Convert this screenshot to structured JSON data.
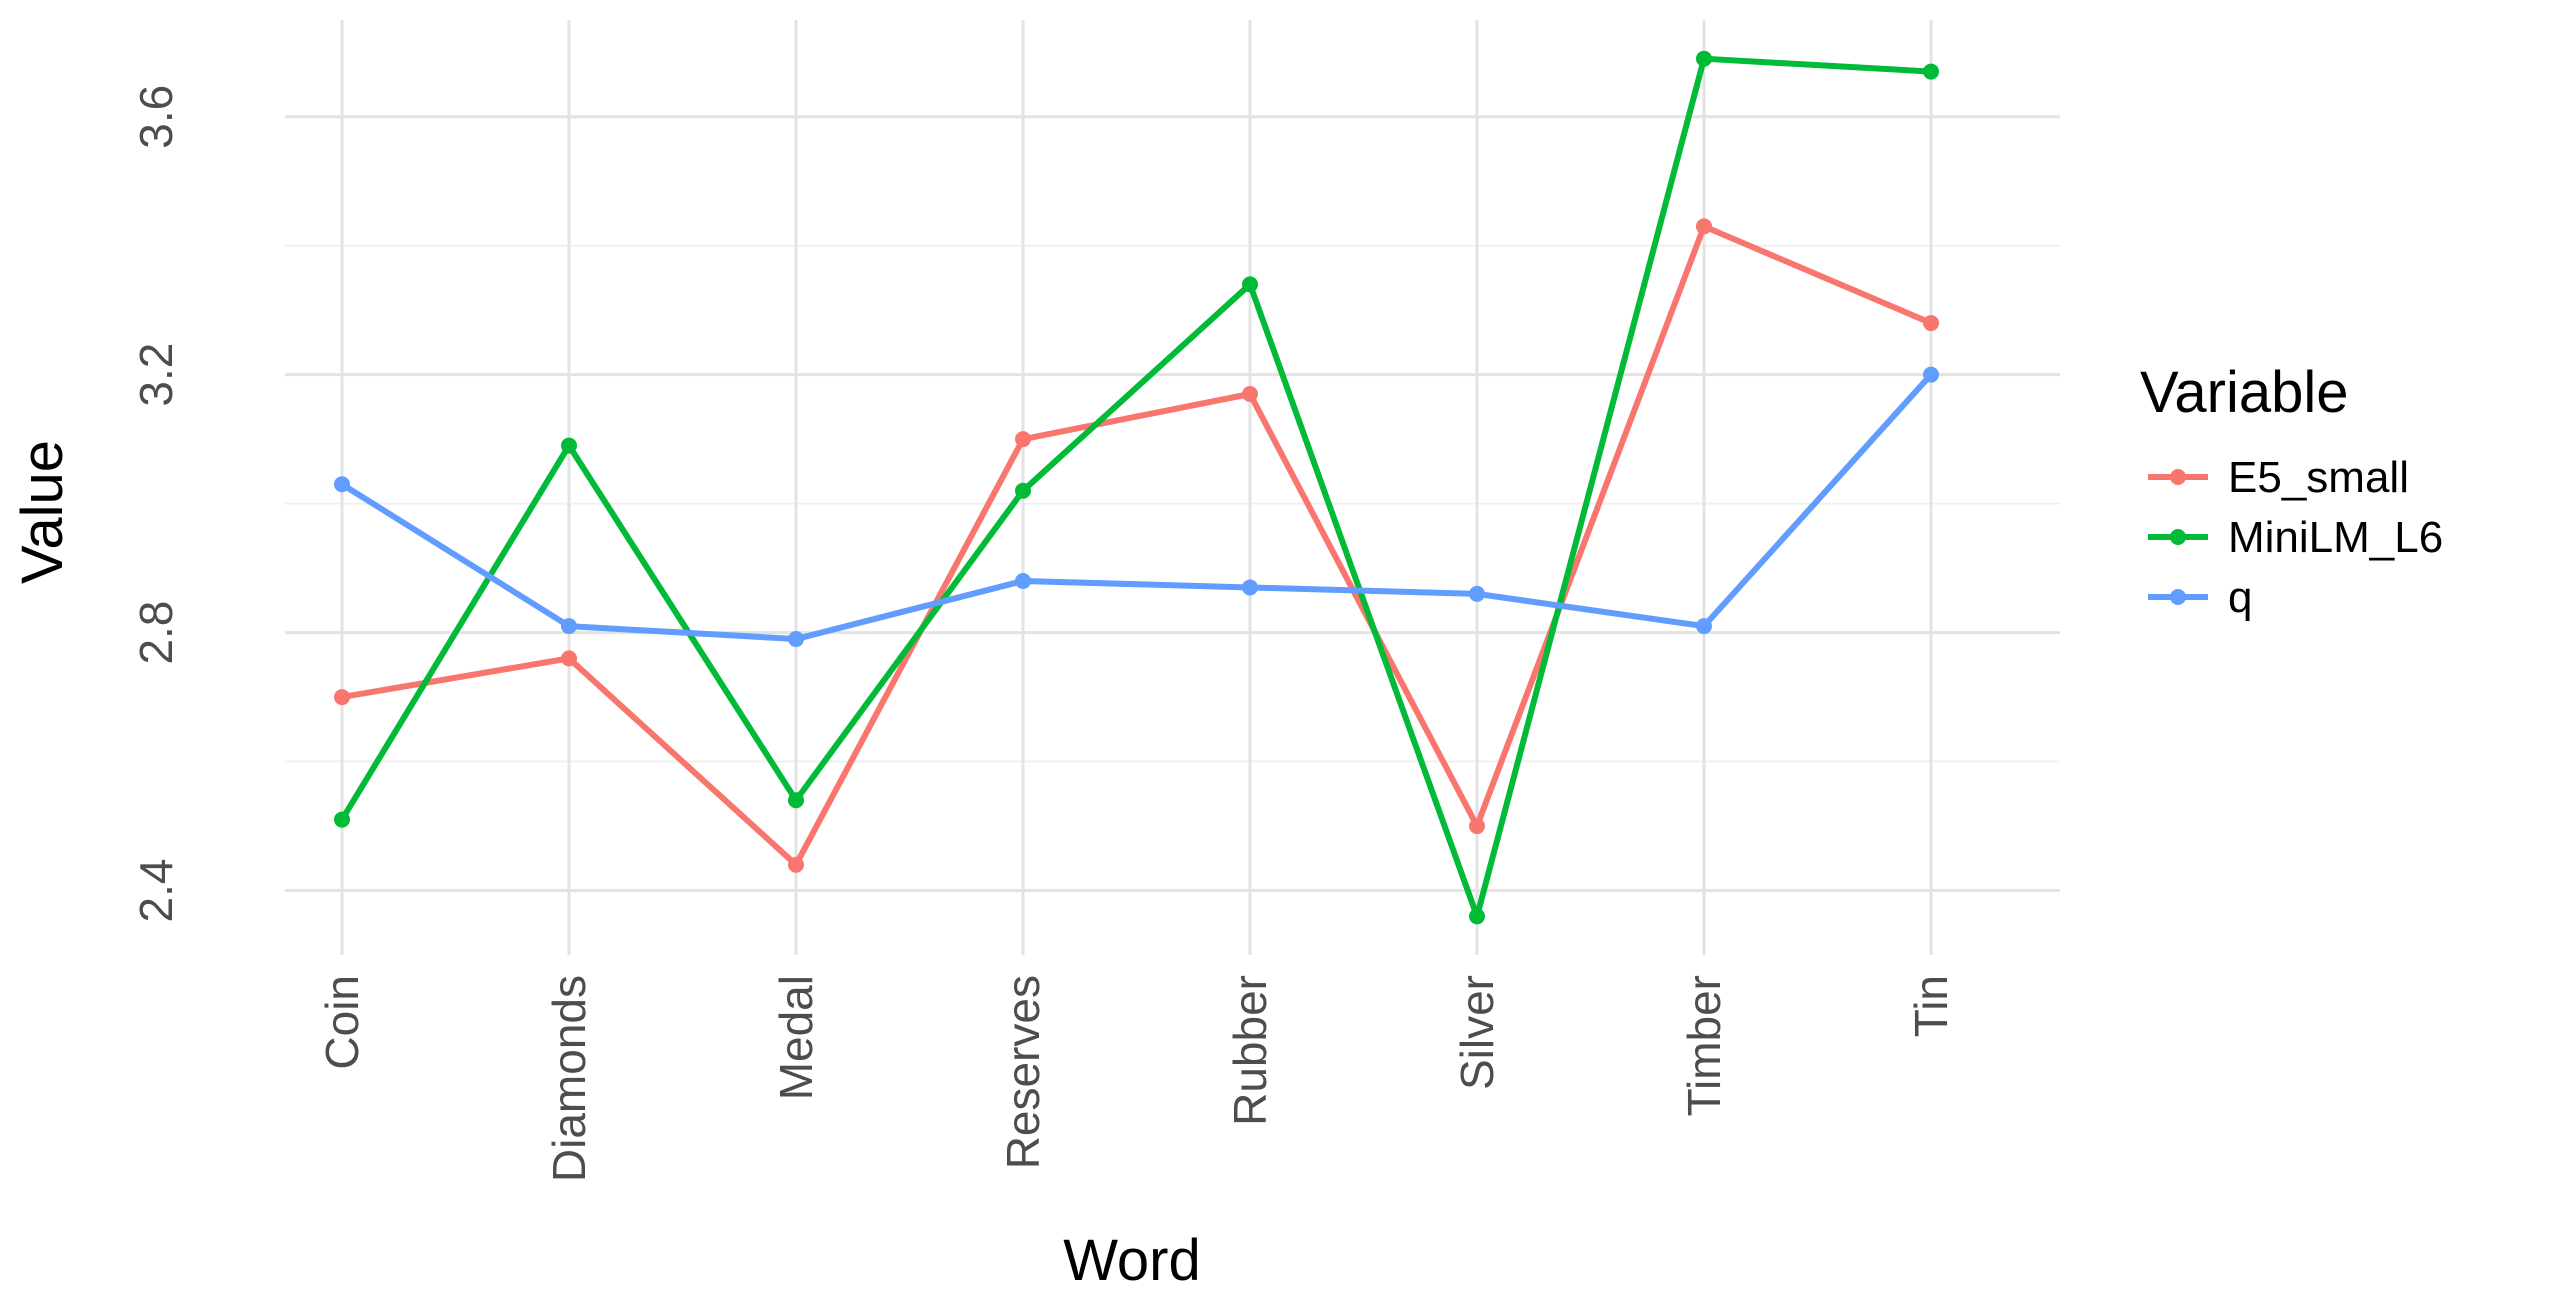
{
  "chart_data": {
    "type": "line",
    "xlabel": "Word",
    "ylabel": "Value",
    "categories": [
      "Coin",
      "Diamonds",
      "Medal",
      "Reserves",
      "Rubber",
      "Silver",
      "Timber",
      "Tin"
    ],
    "ylim": [
      2.3,
      3.75
    ],
    "y_ticks": [
      2.4,
      2.8,
      3.2,
      3.6
    ],
    "y_tick_labels": [
      "2.4",
      "2.8",
      "3.2",
      "3.6"
    ],
    "grid": true,
    "legend_title": "Variable",
    "legend_position": "right",
    "series": [
      {
        "name": "E5_small",
        "color": "#F8766D",
        "values": [
          2.7,
          2.76,
          2.44,
          3.1,
          3.17,
          2.5,
          3.43,
          3.28
        ]
      },
      {
        "name": "MiniLM_L6",
        "color": "#00BA38",
        "values": [
          2.51,
          3.09,
          2.54,
          3.02,
          3.34,
          2.36,
          3.69,
          3.67
        ]
      },
      {
        "name": "q",
        "color": "#619CFF",
        "values": [
          3.03,
          2.81,
          2.79,
          2.88,
          2.87,
          2.86,
          2.81,
          3.2
        ]
      }
    ]
  }
}
